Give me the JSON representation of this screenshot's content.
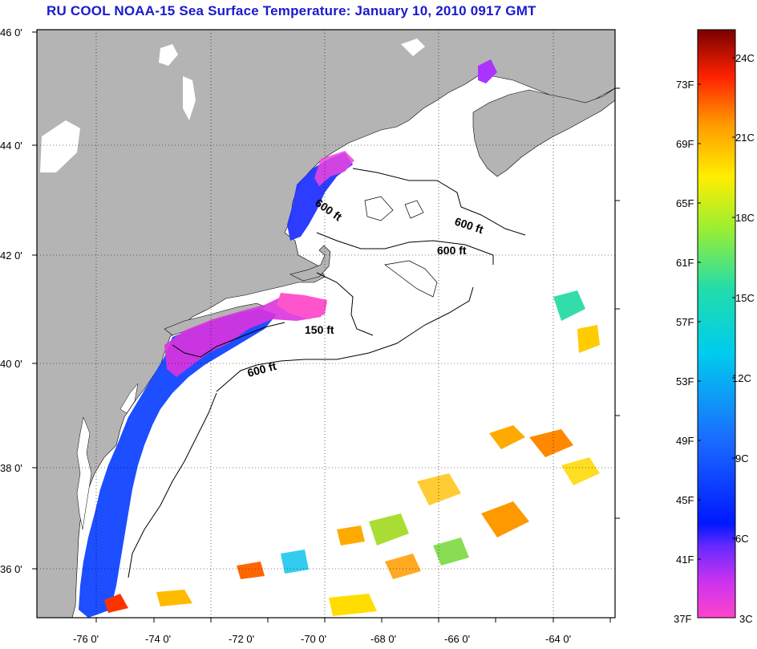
{
  "title": "RU COOL  NOAA-15  Sea Surface Temperature:  January 10, 2010 0917 GMT",
  "lat_labels": [
    "46 0'",
    "44 0'",
    "42 0'",
    "40 0'",
    "38 0'",
    "36 0'"
  ],
  "lon_labels": [
    "-76 0'",
    "-74 0'",
    "-72 0'",
    "-70 0'",
    "-68 0'",
    "-66 0'",
    "-64 0'"
  ],
  "contour_labels": [
    "600 ft",
    "600 ft",
    "600 ft",
    "150 ft",
    "600 ft"
  ],
  "colorbar": {
    "fahrenheit": [
      "73F",
      "69F",
      "65F",
      "61F",
      "57F",
      "53F",
      "49F",
      "45F",
      "41F",
      "37F"
    ],
    "celsius": [
      "24C",
      "21C",
      "18C",
      "15C",
      "12C",
      "9C",
      "6C",
      "3C"
    ]
  },
  "colors": {
    "land": "#b4b4b4",
    "ocean": "#ffffff",
    "title": "#1a1acc"
  }
}
